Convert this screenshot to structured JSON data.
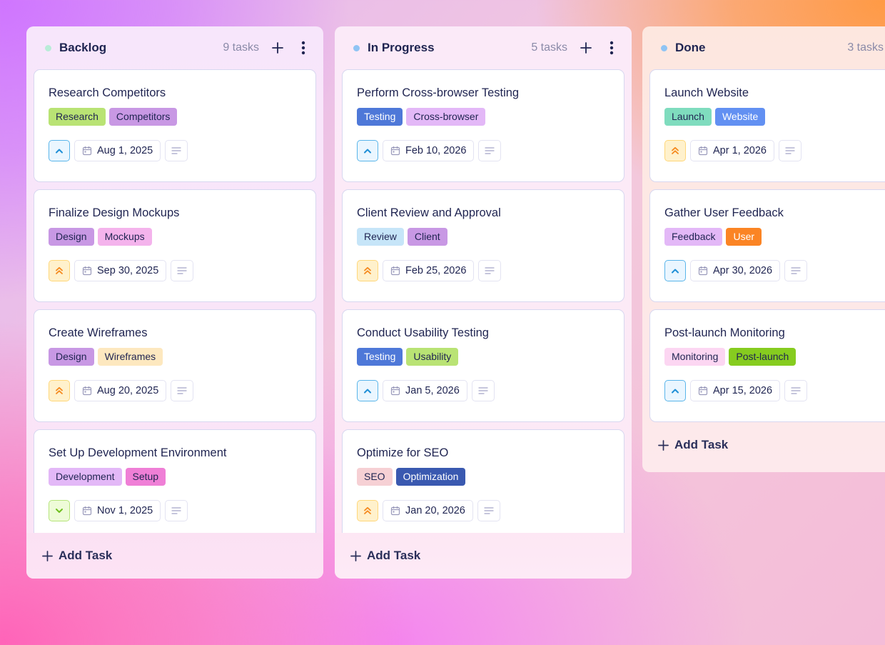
{
  "colors": {
    "text_primary": "#1f2451",
    "text_muted": "#8a8aa8",
    "card_border": "#d7d7f0",
    "priority_medium": "#1f8fd6",
    "priority_high": "#f58a1f",
    "priority_low": "#6fbf1f"
  },
  "columns": [
    {
      "id": "backlog",
      "title": "Backlog",
      "dot_color": "#b9ecd8",
      "count_label": "9 tasks",
      "add_task_label": "Add Task",
      "cards": [
        {
          "title": "Research Competitors",
          "tags": [
            {
              "label": "Research",
              "bg": "#b9e374",
              "fg": "#1f2451"
            },
            {
              "label": "Competitors",
              "bg": "#c898e4",
              "fg": "#1f2451"
            }
          ],
          "priority": "medium",
          "due_date": "Aug 1, 2025"
        },
        {
          "title": "Finalize Design Mockups",
          "tags": [
            {
              "label": "Design",
              "bg": "#c898e4",
              "fg": "#1f2451"
            },
            {
              "label": "Mockups",
              "bg": "#f4b3ec",
              "fg": "#1f2451"
            }
          ],
          "priority": "high",
          "due_date": "Sep 30, 2025"
        },
        {
          "title": "Create Wireframes",
          "tags": [
            {
              "label": "Design",
              "bg": "#c898e4",
              "fg": "#1f2451"
            },
            {
              "label": "Wireframes",
              "bg": "#fde8bf",
              "fg": "#1f2451"
            }
          ],
          "priority": "high",
          "due_date": "Aug 20, 2025"
        },
        {
          "title": "Set Up Development Environment",
          "tags": [
            {
              "label": "Development",
              "bg": "#e3b8f7",
              "fg": "#1f2451"
            },
            {
              "label": "Setup",
              "bg": "#ef7fd6",
              "fg": "#1f2451"
            }
          ],
          "priority": "low",
          "due_date": "Nov 1, 2025"
        }
      ]
    },
    {
      "id": "progress",
      "title": "In Progress",
      "dot_color": "#8fc4f4",
      "count_label": "5 tasks",
      "add_task_label": "Add Task",
      "cards": [
        {
          "title": "Perform Cross-browser Testing",
          "tags": [
            {
              "label": "Testing",
              "bg": "#4e78d8",
              "fg": "#ffffff"
            },
            {
              "label": "Cross-browser",
              "bg": "#e3b8f7",
              "fg": "#1f2451"
            }
          ],
          "priority": "medium",
          "due_date": "Feb 10, 2026"
        },
        {
          "title": "Client Review and Approval",
          "tags": [
            {
              "label": "Review",
              "bg": "#c6e5f8",
              "fg": "#1f2451"
            },
            {
              "label": "Client",
              "bg": "#c898e4",
              "fg": "#1f2451"
            }
          ],
          "priority": "high",
          "due_date": "Feb 25, 2026"
        },
        {
          "title": "Conduct Usability Testing",
          "tags": [
            {
              "label": "Testing",
              "bg": "#4e78d8",
              "fg": "#ffffff"
            },
            {
              "label": "Usability",
              "bg": "#b9e374",
              "fg": "#1f2451"
            }
          ],
          "priority": "medium",
          "due_date": "Jan 5, 2026"
        },
        {
          "title": "Optimize for SEO",
          "tags": [
            {
              "label": "SEO",
              "bg": "#f6d0d4",
              "fg": "#1f2451"
            },
            {
              "label": "Optimization",
              "bg": "#3a59b0",
              "fg": "#ffffff"
            }
          ],
          "priority": "high",
          "due_date": "Jan 20, 2026"
        }
      ]
    },
    {
      "id": "done",
      "title": "Done",
      "dot_color": "#8fc4f4",
      "count_label": "3 tasks",
      "add_task_label": "Add Task",
      "cards": [
        {
          "title": "Launch Website",
          "tags": [
            {
              "label": "Launch",
              "bg": "#7fdcbe",
              "fg": "#1f2451"
            },
            {
              "label": "Website",
              "bg": "#6290f2",
              "fg": "#ffffff"
            }
          ],
          "priority": "high",
          "due_date": "Apr 1, 2026"
        },
        {
          "title": "Gather User Feedback",
          "tags": [
            {
              "label": "Feedback",
              "bg": "#e3b8f7",
              "fg": "#1f2451"
            },
            {
              "label": "User",
              "bg": "#fb8424",
              "fg": "#ffffff"
            }
          ],
          "priority": "medium",
          "due_date": "Apr 30, 2026"
        },
        {
          "title": "Post-launch Monitoring",
          "tags": [
            {
              "label": "Monitoring",
              "bg": "#fcd6f2",
              "fg": "#1f2451"
            },
            {
              "label": "Post-launch",
              "bg": "#86cc1f",
              "fg": "#1f2451"
            }
          ],
          "priority": "medium",
          "due_date": "Apr 15, 2026"
        }
      ]
    }
  ]
}
